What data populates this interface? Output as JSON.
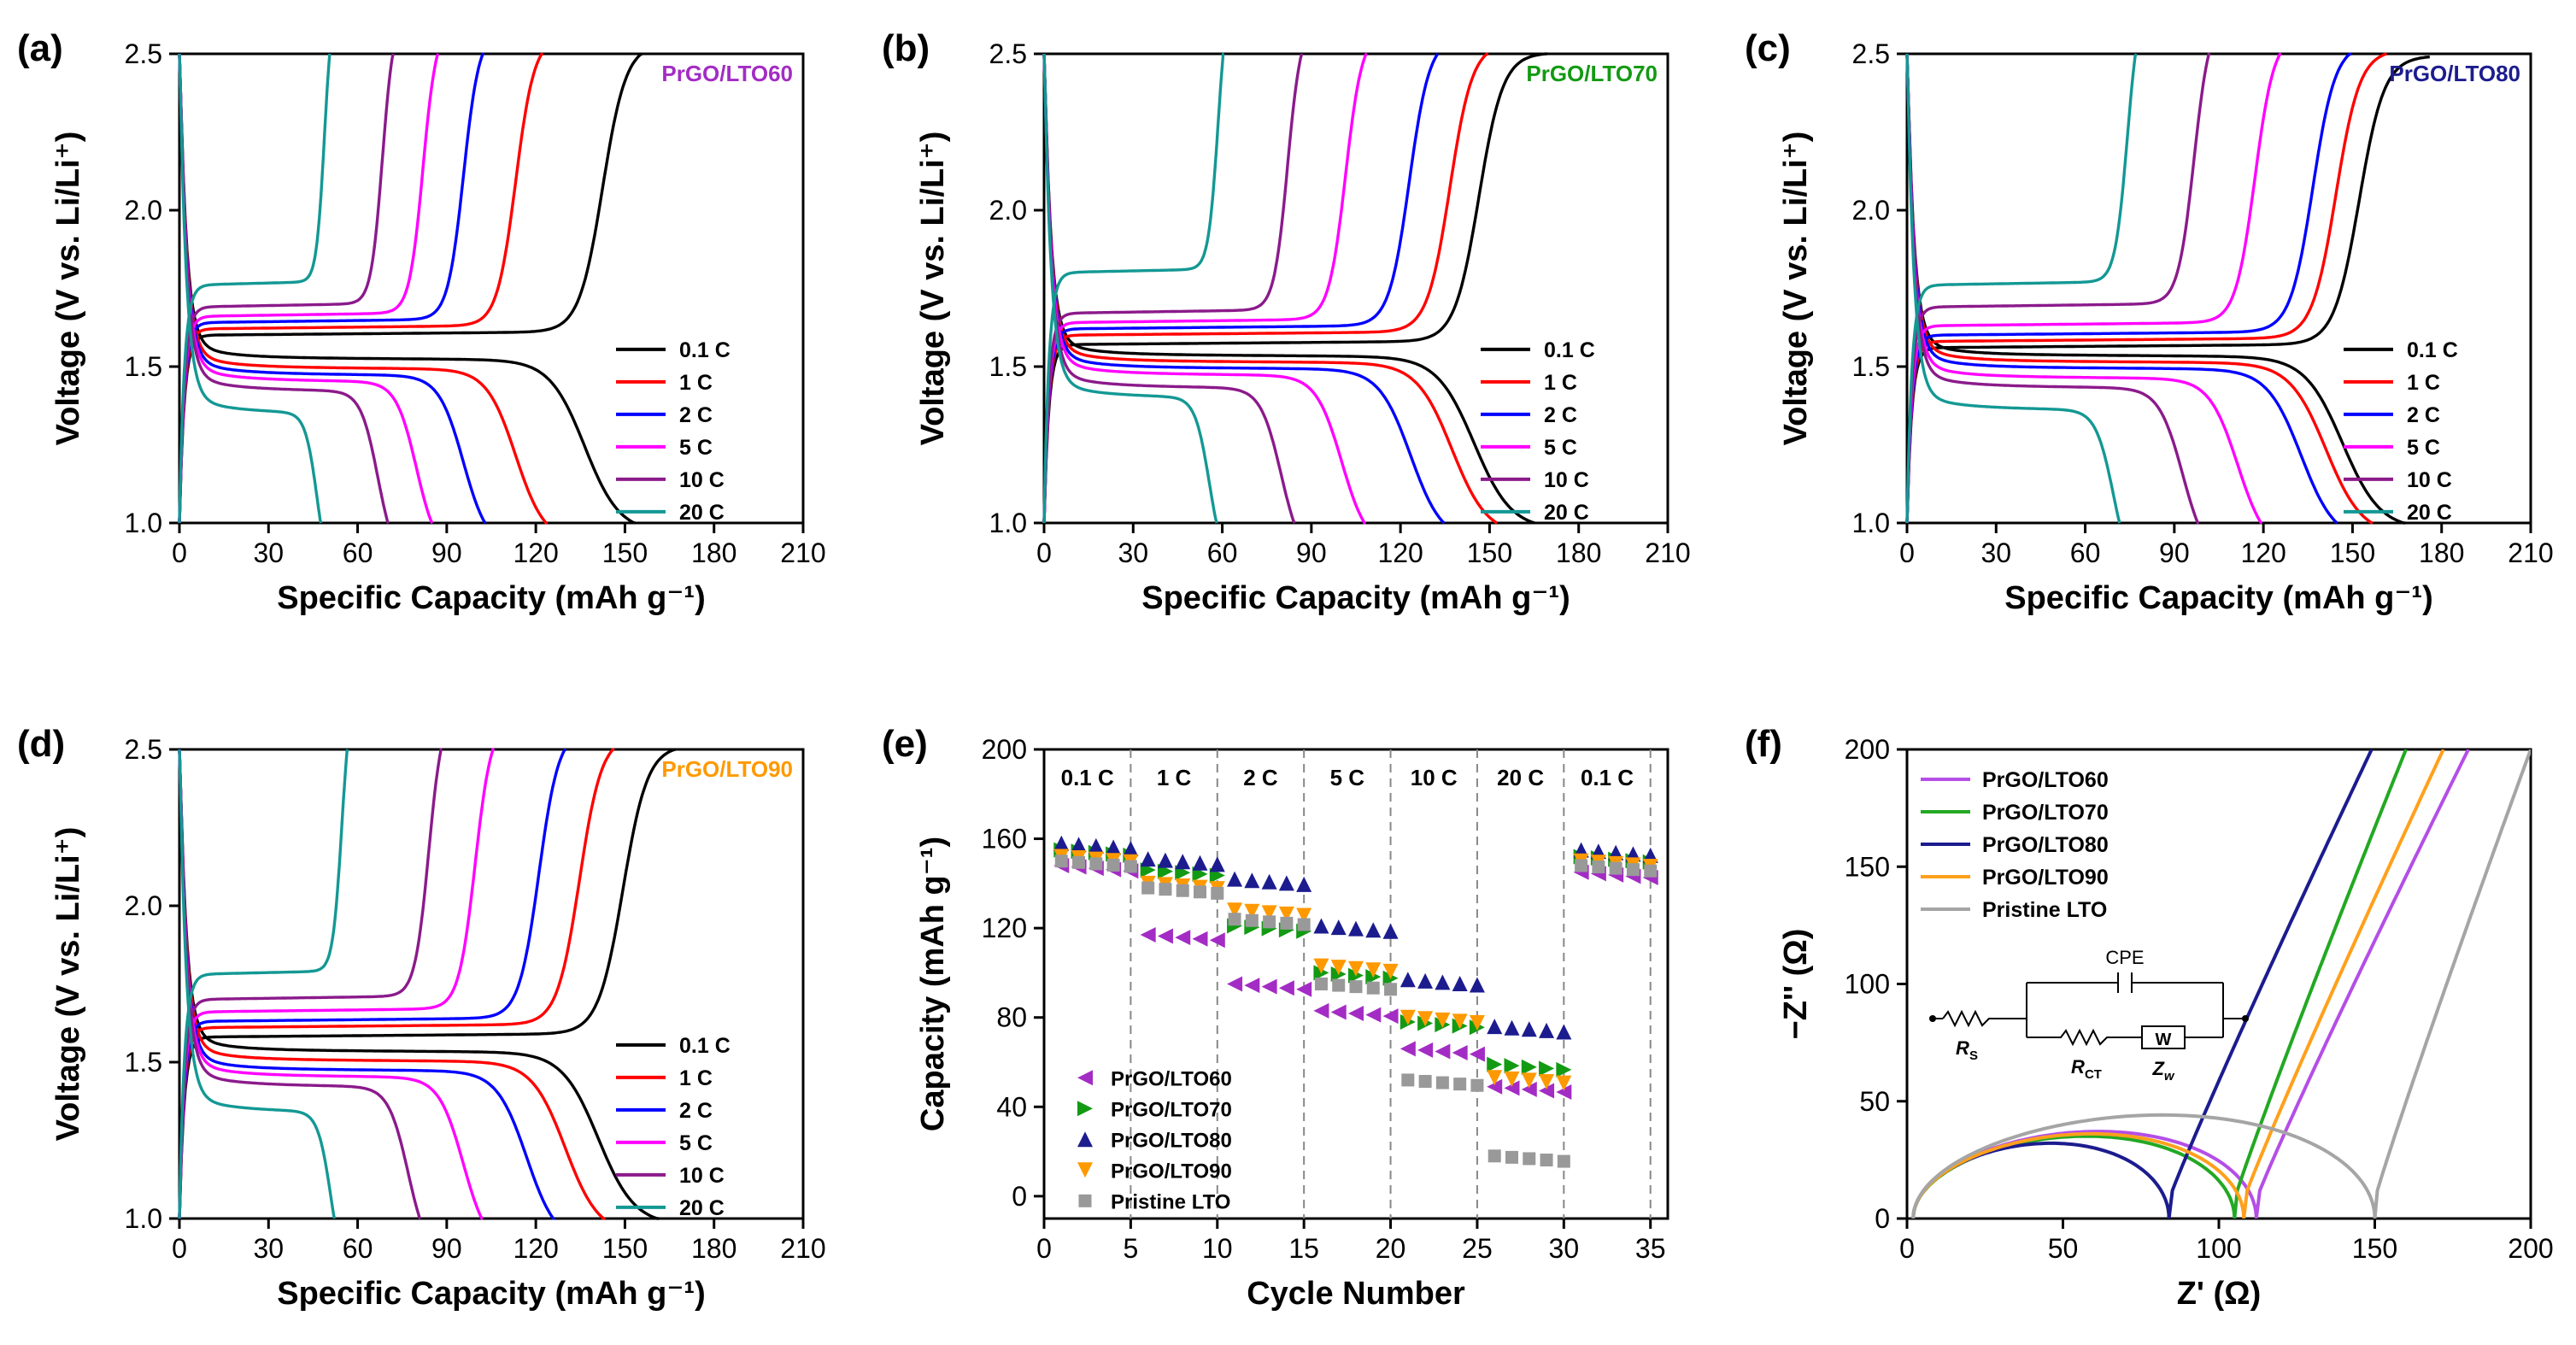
{
  "chart_data": [
    {
      "id": "a",
      "type": "line",
      "panel_label": "(a)",
      "xlabel": "Specific Capacity (mAh g⁻¹)",
      "ylabel": "Voltage (V vs. Li/Li⁺)",
      "xlim": [
        0,
        210
      ],
      "ylim": [
        1.0,
        2.5
      ],
      "xticks": [
        "0",
        "30",
        "60",
        "90",
        "120",
        "150",
        "180",
        "210"
      ],
      "yticks": [
        "1.0",
        "1.5",
        "2.0",
        "2.5"
      ],
      "sample_label": "PrGO/LTO60",
      "sample_color": "#a32cc4",
      "legend": [
        "0.1 C",
        "1 C",
        "2 C",
        "5 C",
        "10 C",
        "20 C"
      ],
      "series_colors": [
        "#000000",
        "#ff0000",
        "#0000ff",
        "#ff00ff",
        "#8b1a8b",
        "#139894"
      ],
      "curves": [
        {
          "rate": "0.1 C",
          "discharge_capacity": 147,
          "charge_capacity": 146,
          "plateau_discharge": 1.53,
          "plateau_charge": 1.6
        },
        {
          "rate": "1 C",
          "discharge_capacity": 122,
          "charge_capacity": 116,
          "plateau_discharge": 1.5,
          "plateau_charge": 1.62
        },
        {
          "rate": "2 C",
          "discharge_capacity": 103,
          "charge_capacity": 98,
          "plateau_discharge": 1.48,
          "plateau_charge": 1.64
        },
        {
          "rate": "5 C",
          "discharge_capacity": 86,
          "charge_capacity": 84,
          "plateau_discharge": 1.46,
          "plateau_charge": 1.66
        },
        {
          "rate": "10 C",
          "discharge_capacity": 72,
          "charge_capacity": 70,
          "plateau_discharge": 1.43,
          "plateau_charge": 1.69
        },
        {
          "rate": "20 C",
          "discharge_capacity": 50,
          "charge_capacity": 50,
          "plateau_discharge": 1.36,
          "plateau_charge": 1.76
        }
      ]
    },
    {
      "id": "b",
      "type": "line",
      "panel_label": "(b)",
      "xlabel": "Specific Capacity (mAh g⁻¹)",
      "ylabel": "Voltage (V vs. Li/Li⁺)",
      "xlim": [
        0,
        210
      ],
      "ylim": [
        1.0,
        2.5
      ],
      "xticks": [
        "0",
        "30",
        "60",
        "90",
        "120",
        "150",
        "180",
        "210"
      ],
      "yticks": [
        "1.0",
        "1.5",
        "2.0",
        "2.5"
      ],
      "sample_label": "PrGO/LTO70",
      "sample_color": "#139a13",
      "legend": [
        "0.1 C",
        "1 C",
        "2 C",
        "5 C",
        "10 C",
        "20 C"
      ],
      "series_colors": [
        "#000000",
        "#ff0000",
        "#0000ff",
        "#ff00ff",
        "#8b1a8b",
        "#139894"
      ],
      "curves": [
        {
          "rate": "0.1 C",
          "discharge_capacity": 156,
          "charge_capacity": 150,
          "plateau_discharge": 1.54,
          "plateau_charge": 1.57
        },
        {
          "rate": "1 C",
          "discharge_capacity": 148,
          "charge_capacity": 140,
          "plateau_discharge": 1.52,
          "plateau_charge": 1.6
        },
        {
          "rate": "2 C",
          "discharge_capacity": 133,
          "charge_capacity": 126,
          "plateau_discharge": 1.5,
          "plateau_charge": 1.62
        },
        {
          "rate": "5 C",
          "discharge_capacity": 108,
          "charge_capacity": 104,
          "plateau_discharge": 1.48,
          "plateau_charge": 1.64
        },
        {
          "rate": "10 C",
          "discharge_capacity": 86,
          "charge_capacity": 84,
          "plateau_discharge": 1.44,
          "plateau_charge": 1.67
        },
        {
          "rate": "20 C",
          "discharge_capacity": 60,
          "charge_capacity": 60,
          "plateau_discharge": 1.41,
          "plateau_charge": 1.8
        }
      ]
    },
    {
      "id": "c",
      "type": "line",
      "panel_label": "(c)",
      "xlabel": "Specific Capacity (mAh g⁻¹)",
      "ylabel": "Voltage (V vs. Li/Li⁺)",
      "xlim": [
        0,
        210
      ],
      "ylim": [
        1.0,
        2.5
      ],
      "xticks": [
        "0",
        "30",
        "60",
        "90",
        "120",
        "150",
        "180",
        "210"
      ],
      "yticks": [
        "1.0",
        "1.5",
        "2.0",
        "2.5"
      ],
      "sample_label": "PrGO/LTO80",
      "sample_color": "#1c1c8f",
      "legend": [
        "0.1 C",
        "1 C",
        "2 C",
        "5 C",
        "10 C",
        "20 C"
      ],
      "series_colors": [
        "#000000",
        "#ff0000",
        "#0000ff",
        "#ff00ff",
        "#8b1a8b",
        "#139894"
      ],
      "curves": [
        {
          "rate": "0.1 C",
          "discharge_capacity": 158,
          "charge_capacity": 156,
          "plateau_discharge": 1.54,
          "plateau_charge": 1.56
        },
        {
          "rate": "1 C",
          "discharge_capacity": 152,
          "charge_capacity": 148,
          "plateau_discharge": 1.52,
          "plateau_charge": 1.58
        },
        {
          "rate": "2 C",
          "discharge_capacity": 143,
          "charge_capacity": 140,
          "plateau_discharge": 1.5,
          "plateau_charge": 1.6
        },
        {
          "rate": "5 C",
          "discharge_capacity": 120,
          "charge_capacity": 120,
          "plateau_discharge": 1.47,
          "plateau_charge": 1.63
        },
        {
          "rate": "10 C",
          "discharge_capacity": 100,
          "charge_capacity": 99,
          "plateau_discharge": 1.44,
          "plateau_charge": 1.69
        },
        {
          "rate": "20 C",
          "discharge_capacity": 75,
          "charge_capacity": 76,
          "plateau_discharge": 1.37,
          "plateau_charge": 1.76
        }
      ]
    },
    {
      "id": "d",
      "type": "line",
      "panel_label": "(d)",
      "xlabel": "Specific Capacity (mAh g⁻¹)",
      "ylabel": "Voltage (V vs. Li/Li⁺)",
      "xlim": [
        0,
        210
      ],
      "ylim": [
        1.0,
        2.5
      ],
      "xticks": [
        "0",
        "30",
        "60",
        "90",
        "120",
        "150",
        "180",
        "210"
      ],
      "yticks": [
        "1.0",
        "1.5",
        "2.0",
        "2.5"
      ],
      "sample_label": "PrGO/LTO90",
      "sample_color": "#ff9900",
      "legend": [
        "0.1 C",
        "1 C",
        "2 C",
        "5 C",
        "10 C",
        "20 C"
      ],
      "series_colors": [
        "#000000",
        "#ff0000",
        "#0000ff",
        "#ff00ff",
        "#8b1a8b",
        "#139894"
      ],
      "curves": [
        {
          "rate": "0.1 C",
          "discharge_capacity": 152,
          "charge_capacity": 153,
          "plateau_discharge": 1.54,
          "plateau_charge": 1.58
        },
        {
          "rate": "1 C",
          "discharge_capacity": 140,
          "charge_capacity": 138,
          "plateau_discharge": 1.51,
          "plateau_charge": 1.61
        },
        {
          "rate": "2 C",
          "discharge_capacity": 126,
          "charge_capacity": 124,
          "plateau_discharge": 1.48,
          "plateau_charge": 1.63
        },
        {
          "rate": "5 C",
          "discharge_capacity": 103,
          "charge_capacity": 102,
          "plateau_discharge": 1.46,
          "plateau_charge": 1.66
        },
        {
          "rate": "10 C",
          "discharge_capacity": 83,
          "charge_capacity": 86,
          "plateau_discharge": 1.43,
          "plateau_charge": 1.7
        },
        {
          "rate": "20 C",
          "discharge_capacity": 55,
          "charge_capacity": 56,
          "plateau_discharge": 1.35,
          "plateau_charge": 1.78
        }
      ]
    },
    {
      "id": "e",
      "type": "scatter",
      "panel_label": "(e)",
      "xlabel": "Cycle Number",
      "ylabel": "Capacity (mAh g⁻¹)",
      "xlim": [
        0,
        36
      ],
      "ylim": [
        -10,
        200
      ],
      "xticks": [
        "0",
        "5",
        "10",
        "15",
        "20",
        "25",
        "30",
        "35"
      ],
      "yticks": [
        "0",
        "40",
        "80",
        "120",
        "160",
        "200"
      ],
      "segments": [
        "0.1 C",
        "1 C",
        "2 C",
        "5 C",
        "10 C",
        "20 C",
        "0.1 C"
      ],
      "legend": [
        "PrGO/LTO60",
        "PrGO/LTO70",
        "PrGO/LTO80",
        "PrGO/LTO90",
        "Pristine LTO"
      ],
      "series": [
        {
          "name": "PrGO/LTO60",
          "color": "#a32cc4",
          "marker": "triangle-left",
          "segment_values": [
            148,
            117,
            95,
            83,
            66,
            49,
            145
          ]
        },
        {
          "name": "PrGO/LTO70",
          "color": "#139a13",
          "marker": "triangle-right",
          "segment_values": [
            155,
            146,
            121,
            100,
            78,
            59,
            152
          ]
        },
        {
          "name": "PrGO/LTO80",
          "color": "#1c1c8f",
          "marker": "triangle-up",
          "segment_values": [
            158,
            151,
            142,
            121,
            97,
            76,
            155
          ]
        },
        {
          "name": "PrGO/LTO90",
          "color": "#ff9900",
          "marker": "triangle-down",
          "segment_values": [
            152,
            140,
            128,
            103,
            80,
            53,
            150
          ]
        },
        {
          "name": "Pristine LTO",
          "color": "#999999",
          "marker": "square",
          "segment_values": [
            150,
            138,
            124,
            95,
            52,
            18,
            148
          ]
        }
      ]
    },
    {
      "id": "f",
      "type": "line",
      "panel_label": "(f)",
      "xlabel": "Z' (Ω)",
      "ylabel": "−Z'' (Ω)",
      "xlim": [
        0,
        200
      ],
      "ylim": [
        0,
        200
      ],
      "xticks": [
        "0",
        "50",
        "100",
        "150",
        "200"
      ],
      "yticks": [
        "0",
        "50",
        "100",
        "150",
        "200"
      ],
      "legend": [
        "PrGO/LTO60",
        "PrGO/LTO70",
        "PrGO/LTO80",
        "PrGO/LTO90",
        "Pristine LTO"
      ],
      "series": [
        {
          "name": "PrGO/LTO60",
          "color": "#b44ee6",
          "semicircle_min_x": 112,
          "semicircle_peak": 37,
          "tail_end_x": 180
        },
        {
          "name": "PrGO/LTO70",
          "color": "#23a823",
          "semicircle_min_x": 105,
          "semicircle_peak": 35,
          "tail_end_x": 160
        },
        {
          "name": "PrGO/LTO80",
          "color": "#1c1c8f",
          "semicircle_min_x": 84,
          "semicircle_peak": 32,
          "tail_end_x": 149
        },
        {
          "name": "PrGO/LTO90",
          "color": "#ffa01c",
          "semicircle_min_x": 108,
          "semicircle_peak": 36,
          "tail_end_x": 172
        },
        {
          "name": "Pristine LTO",
          "color": "#a5a5a5",
          "semicircle_min_x": 150,
          "semicircle_peak": 44,
          "tail_end_x": 200
        }
      ],
      "circuit_labels": {
        "cpe": "CPE",
        "rs": "R",
        "rs_sub": "S",
        "rct": "R",
        "rct_sub": "CT",
        "zw": "Z",
        "zw_sub": "w",
        "w": "W"
      }
    }
  ]
}
